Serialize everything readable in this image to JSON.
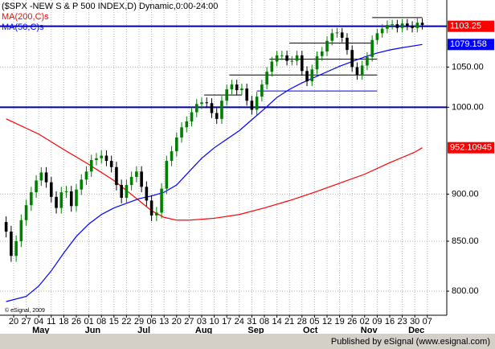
{
  "chart_data": {
    "type": "candlestick",
    "title": "($SPX -NEW S & P 500 INDEX,D) Dynamic,0:00-24:00",
    "copyright": "© eSignal, 2009",
    "footer": "Published by eSignal (www.esignal.com)",
    "up_color": "#008000",
    "down_color": "#000000",
    "log_scale": true,
    "grid": true,
    "xlim": [
      -5.45,
      172.76
    ],
    "ylim": [
      777,
      1139
    ],
    "yticks": [
      {
        "value": 1050,
        "label": "1050.00"
      },
      {
        "value": 1000,
        "label": "1000.00"
      },
      {
        "value": 900,
        "label": "900.00"
      },
      {
        "value": 850,
        "label": "850.00"
      },
      {
        "value": 800,
        "label": "800.00"
      }
    ],
    "xticks": [
      {
        "value": 0,
        "label": "20"
      },
      {
        "value": 5,
        "label": "27"
      },
      {
        "value": 10,
        "label": "04"
      },
      {
        "value": 15,
        "label": "11"
      },
      {
        "value": 20,
        "label": "18"
      },
      {
        "value": 25,
        "label": "26"
      },
      {
        "value": 30,
        "label": "01"
      },
      {
        "value": 35,
        "label": "08"
      },
      {
        "value": 40,
        "label": "15"
      },
      {
        "value": 45,
        "label": "22"
      },
      {
        "value": 50,
        "label": "29"
      },
      {
        "value": 55,
        "label": "06"
      },
      {
        "value": 60,
        "label": "13"
      },
      {
        "value": 65,
        "label": "20"
      },
      {
        "value": 70,
        "label": "27"
      },
      {
        "value": 75,
        "label": "03"
      },
      {
        "value": 80,
        "label": "10"
      },
      {
        "value": 85,
        "label": "17"
      },
      {
        "value": 90,
        "label": "24"
      },
      {
        "value": 95,
        "label": "31"
      },
      {
        "value": 100,
        "label": "08"
      },
      {
        "value": 105,
        "label": "14"
      },
      {
        "value": 110,
        "label": "21"
      },
      {
        "value": 115,
        "label": "28"
      },
      {
        "value": 120,
        "label": "05"
      },
      {
        "value": 125,
        "label": "12"
      },
      {
        "value": 130,
        "label": "19"
      },
      {
        "value": 135,
        "label": "26"
      },
      {
        "value": 140,
        "label": "02"
      },
      {
        "value": 145,
        "label": "09"
      },
      {
        "value": 150,
        "label": "16"
      },
      {
        "value": 155,
        "label": "23"
      },
      {
        "value": 160,
        "label": "30"
      },
      {
        "value": 165,
        "label": "07"
      }
    ],
    "month_labels": [
      {
        "value": 9,
        "label": "May"
      },
      {
        "value": 30,
        "label": "Jun"
      },
      {
        "value": 51,
        "label": "Jul"
      },
      {
        "value": 74,
        "label": "Aug"
      },
      {
        "value": 95,
        "label": "Sep"
      },
      {
        "value": 117,
        "label": "Oct"
      },
      {
        "value": 140,
        "label": "Nov"
      },
      {
        "value": 159,
        "label": "Dec"
      }
    ],
    "x": [
      -3,
      -1,
      1,
      3,
      5,
      7,
      9,
      11,
      13,
      15,
      17,
      19,
      21,
      23,
      25,
      27,
      29,
      31,
      33,
      35,
      37,
      39,
      41,
      43,
      45,
      47,
      49,
      51,
      53,
      55,
      57,
      59,
      61,
      63,
      65,
      67,
      69,
      71,
      73,
      75,
      77,
      79,
      81,
      83,
      85,
      87,
      89,
      91,
      93,
      95,
      97,
      99,
      101,
      103,
      105,
      107,
      109,
      111,
      113,
      115,
      117,
      119,
      121,
      123,
      125,
      127,
      129,
      131,
      133,
      135,
      137,
      139,
      141,
      143,
      145,
      147,
      149,
      151,
      153,
      155,
      157,
      159,
      161,
      163
    ],
    "open": [
      870,
      860,
      835,
      850,
      872,
      888,
      902,
      915,
      924,
      913,
      897,
      885,
      902,
      903,
      887,
      905,
      916,
      925,
      938,
      940,
      943,
      937,
      930,
      910,
      896,
      910,
      919,
      925,
      908,
      893,
      877,
      880,
      906,
      937,
      948,
      964,
      976,
      983,
      994,
      1004,
      1006,
      1005,
      993,
      986,
      1008,
      1022,
      1028,
      1021,
      1023,
      1008,
      997,
      1013,
      1028,
      1044,
      1057,
      1065,
      1065,
      1058,
      1058,
      1065,
      1045,
      1032,
      1047,
      1064,
      1070,
      1084,
      1094,
      1095,
      1088,
      1072,
      1050,
      1040,
      1052,
      1063,
      1085,
      1094,
      1100,
      1105,
      1106,
      1101,
      1107,
      1104,
      1101,
      1108
    ],
    "high": [
      876,
      866,
      856,
      878,
      894,
      908,
      921,
      930,
      930,
      919,
      903,
      908,
      909,
      909,
      911,
      922,
      931,
      944,
      946,
      949,
      949,
      943,
      936,
      916,
      916,
      925,
      931,
      931,
      914,
      899,
      886,
      912,
      943,
      954,
      970,
      982,
      989,
      1000,
      1010,
      1012,
      1012,
      1011,
      999,
      1014,
      1028,
      1034,
      1034,
      1029,
      1029,
      1014,
      1019,
      1034,
      1050,
      1063,
      1071,
      1071,
      1071,
      1064,
      1071,
      1071,
      1051,
      1053,
      1070,
      1076,
      1090,
      1100,
      1101,
      1101,
      1094,
      1078,
      1056,
      1058,
      1069,
      1091,
      1100,
      1106,
      1111,
      1112,
      1112,
      1113,
      1113,
      1110,
      1114,
      1114
    ],
    "low": [
      854,
      829,
      829,
      844,
      866,
      882,
      896,
      909,
      907,
      891,
      879,
      879,
      896,
      881,
      881,
      899,
      910,
      919,
      932,
      934,
      931,
      924,
      904,
      890,
      890,
      904,
      913,
      902,
      887,
      871,
      871,
      874,
      900,
      931,
      942,
      958,
      970,
      977,
      988,
      998,
      999,
      987,
      980,
      980,
      1002,
      1016,
      1015,
      1015,
      1002,
      991,
      991,
      1007,
      1022,
      1038,
      1051,
      1059,
      1052,
      1052,
      1052,
      1039,
      1026,
      1026,
      1041,
      1058,
      1064,
      1078,
      1088,
      1082,
      1066,
      1044,
      1034,
      1034,
      1046,
      1057,
      1079,
      1088,
      1094,
      1099,
      1095,
      1095,
      1098,
      1095,
      1095,
      1099
    ],
    "close": [
      860,
      835,
      850,
      872,
      888,
      902,
      915,
      924,
      913,
      897,
      885,
      902,
      903,
      887,
      905,
      916,
      925,
      938,
      940,
      943,
      937,
      930,
      910,
      896,
      910,
      919,
      925,
      908,
      893,
      877,
      880,
      906,
      937,
      948,
      964,
      976,
      983,
      994,
      1004,
      1006,
      1005,
      993,
      986,
      1008,
      1022,
      1028,
      1021,
      1023,
      1008,
      997,
      1013,
      1028,
      1044,
      1057,
      1065,
      1065,
      1058,
      1058,
      1065,
      1045,
      1032,
      1047,
      1064,
      1070,
      1084,
      1094,
      1095,
      1088,
      1072,
      1050,
      1040,
      1052,
      1063,
      1085,
      1094,
      1100,
      1105,
      1106,
      1101,
      1107,
      1104,
      1101,
      1108,
      1105
    ],
    "series": [
      {
        "name": "MA(200,C)s",
        "color": "#ff0000",
        "box_color": "#ff0000",
        "x": [
          -3,
          10,
          20,
          30,
          40,
          50,
          55,
          60,
          65,
          70,
          80,
          90,
          100,
          110,
          120,
          130,
          140,
          150,
          160,
          163
        ],
        "values": [
          986,
          968,
          950,
          933,
          915,
          893,
          882,
          875,
          872,
          872,
          874,
          878,
          885,
          893,
          902,
          912,
          922,
          935,
          947,
          952.10945
        ]
      },
      {
        "name": "MA(50,C)s",
        "color": "#0000ff",
        "box_color": "#0000ff",
        "x": [
          -3,
          5,
          10,
          15,
          20,
          25,
          30,
          35,
          40,
          45,
          50,
          55,
          60,
          65,
          70,
          75,
          80,
          85,
          90,
          95,
          100,
          105,
          110,
          115,
          120,
          125,
          130,
          135,
          140,
          145,
          150,
          155,
          163
        ],
        "values": [
          790,
          795,
          805,
          820,
          838,
          855,
          868,
          878,
          885,
          890,
          895,
          898,
          902,
          910,
          925,
          940,
          952,
          962,
          972,
          985,
          998,
          1012,
          1022,
          1030,
          1037,
          1044,
          1051,
          1057,
          1063,
          1068,
          1072,
          1075,
          1079.158
        ]
      }
    ],
    "levels": [
      {
        "value": 1103.25,
        "color": "#0000a0",
        "box_color": "#ff0000"
      },
      {
        "value": 1000,
        "color": "#0000a0"
      }
    ],
    "trendlines": [
      {
        "value": 1115,
        "x": [
          143,
          163
        ],
        "color": "#000000"
      },
      {
        "value": 1081,
        "x": [
          110,
          143
        ],
        "color": "#000000"
      },
      {
        "value": 1060,
        "x": [
          102,
          145
        ],
        "color": "#000000"
      },
      {
        "value": 1040,
        "x": [
          86,
          145
        ],
        "color": "#000000"
      },
      {
        "value": 1020,
        "x": [
          97,
          145
        ],
        "color": "#0000ff"
      },
      {
        "value": 1015,
        "x": [
          76,
          91
        ],
        "color": "#000000"
      }
    ]
  }
}
